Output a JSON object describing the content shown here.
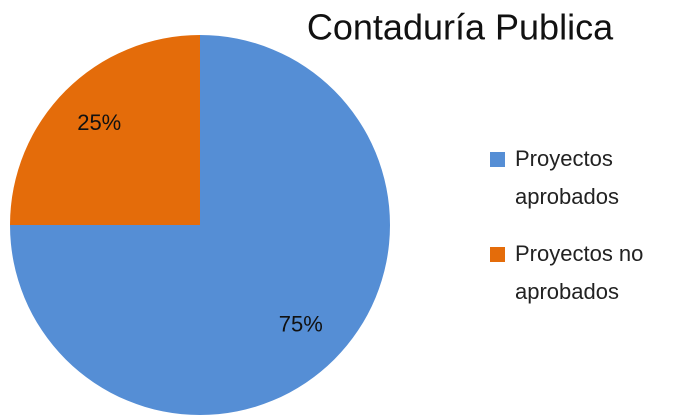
{
  "chart_data": {
    "type": "pie",
    "title": "Contaduría Publica",
    "categories": [
      "Proyectos aprobados",
      "Proyectos no aprobados"
    ],
    "values": [
      75,
      25
    ],
    "value_labels": [
      "75%",
      "25%"
    ],
    "colors": [
      "#558ed5",
      "#e46c0a"
    ],
    "legend": "right"
  }
}
